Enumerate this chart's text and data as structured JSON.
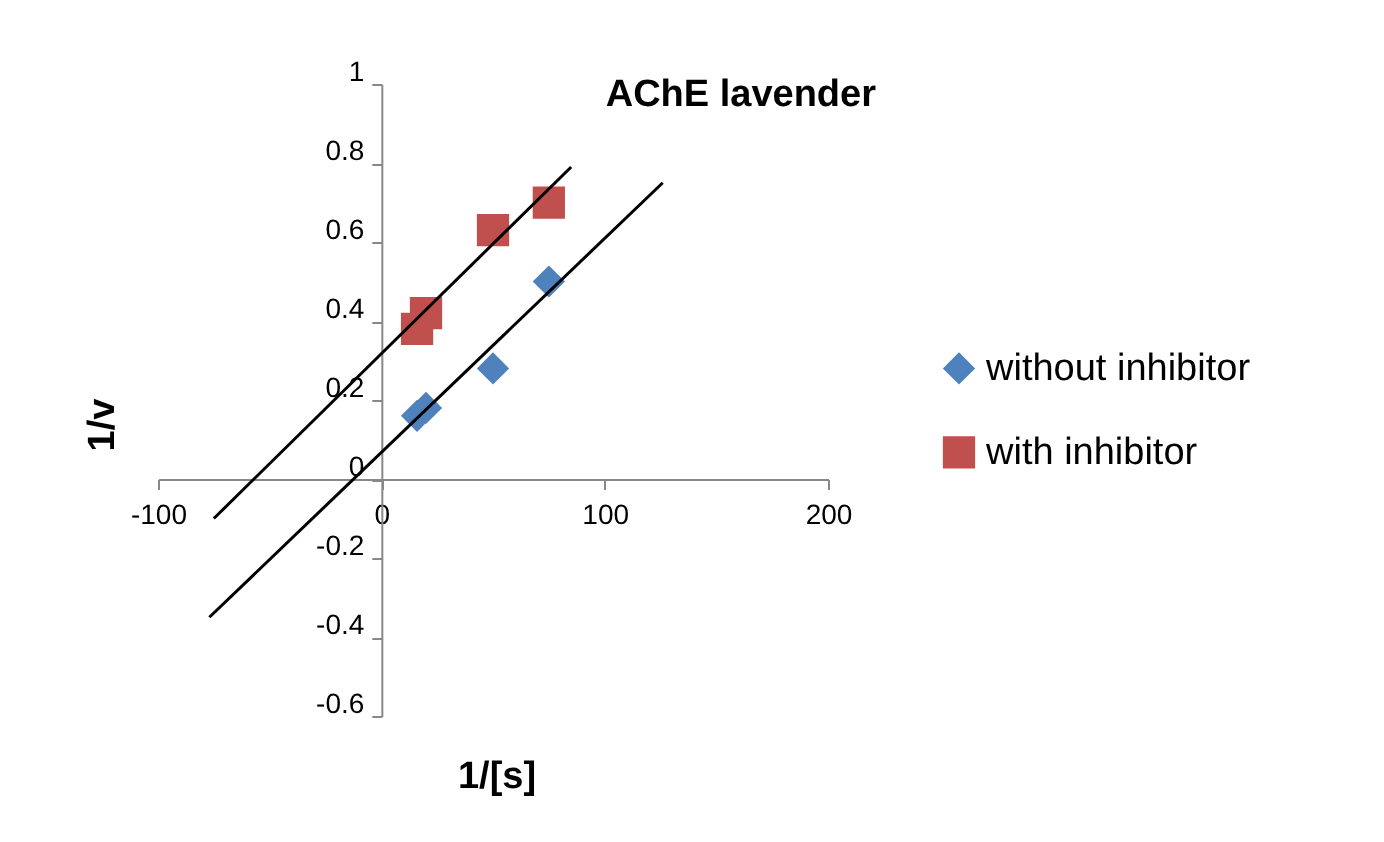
{
  "chart_data": {
    "type": "scatter",
    "title": "AChE  lavender",
    "xlabel": "1/[s]",
    "ylabel": "1/v",
    "xlim": [
      -100,
      200
    ],
    "xticks": [
      -100,
      0,
      100,
      200
    ],
    "ylim": [
      -0.6,
      1
    ],
    "yticks": [
      -0.6,
      -0.4,
      -0.2,
      0,
      0.2,
      0.4,
      0.6,
      0.8,
      1
    ],
    "grid": false,
    "legend": "right",
    "series": [
      {
        "name": "without inhibitor",
        "color": "#4f81bd",
        "marker": "diamond",
        "x": [
          16,
          20,
          50,
          75
        ],
        "values": [
          0.16,
          0.18,
          0.28,
          0.5
        ]
      },
      {
        "name": "with inhibitor",
        "color": "#c0504d",
        "marker": "square",
        "x": [
          16,
          20,
          50,
          75
        ],
        "values": [
          0.38,
          0.42,
          0.63,
          0.7
        ]
      },
      {
        "type": "line",
        "color": "#000000",
        "marker": "none",
        "x": [
          -77,
          126
        ],
        "values": [
          -0.35,
          0.75
        ]
      },
      {
        "type": "line",
        "color": "#000000",
        "marker": "none",
        "x": [
          -75,
          85
        ],
        "values": [
          -0.1,
          0.79
        ]
      }
    ]
  }
}
